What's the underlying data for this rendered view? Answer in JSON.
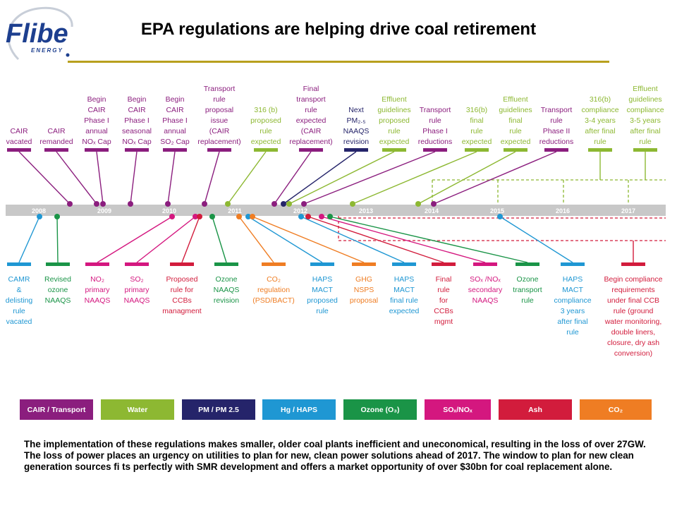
{
  "header": {
    "logo_text": "Flibe",
    "logo_subtext": "ENERGY",
    "title": "EPA regulations are helping drive coal retirement"
  },
  "colors": {
    "CAIR": "#8b1e7e",
    "Water": "#8db832",
    "PM": "#25246a",
    "HAPS": "#1f97d3",
    "Ozone": "#1a9447",
    "SOxNOx": "#d4177f",
    "Ash": "#d21c3c",
    "CO2": "#ef7d23"
  },
  "timeline": {
    "years": [
      "2008",
      "2009",
      "2010",
      "2011",
      "2012",
      "2013",
      "2014",
      "2015",
      "2016",
      "2017"
    ],
    "top_events": [
      {
        "id": "t1",
        "lines": [
          "CAIR",
          "vacated"
        ],
        "cat": "CAIR",
        "bx": 27,
        "dx": 99
      },
      {
        "id": "t2",
        "lines": [
          "CAIR",
          "remanded"
        ],
        "cat": "CAIR",
        "bx": 80,
        "dx": 137
      },
      {
        "id": "t3",
        "lines": [
          "Begin",
          "CAIR",
          "Phase I",
          "annual",
          "NOₓ Cap"
        ],
        "cat": "CAIR",
        "bx": 137,
        "dx": 146
      },
      {
        "id": "t4",
        "lines": [
          "Begin",
          "CAIR",
          "Phase I",
          "seasonal",
          "NOₓ Cap"
        ],
        "cat": "CAIR",
        "bx": 194,
        "dx": 185
      },
      {
        "id": "t5",
        "lines": [
          "Begin",
          "CAIR",
          "Phase I",
          "annual",
          "SO₂ Cap"
        ],
        "cat": "CAIR",
        "bx": 248,
        "dx": 238
      },
      {
        "id": "t6",
        "lines": [
          "Transport",
          "rule",
          "proposal",
          "issue",
          "(CAIR",
          "replacement)"
        ],
        "cat": "CAIR",
        "bx": 311,
        "dx": 290
      },
      {
        "id": "t7",
        "lines": [
          "316 (b)",
          "proposed",
          "rule",
          "expected"
        ],
        "cat": "Water",
        "bx": 377,
        "dx": 323
      },
      {
        "id": "t8",
        "lines": [
          "Final",
          "transport",
          "rule",
          "expected",
          "(CAIR",
          "replacement)"
        ],
        "cat": "CAIR",
        "bx": 441,
        "dx": 389
      },
      {
        "id": "t9",
        "lines": [
          "Next",
          "PM₂.₅",
          "NAAQS",
          "revision"
        ],
        "cat": "PM",
        "bx": 505,
        "dx": 402
      },
      {
        "id": "t10",
        "lines": [
          "Effluent",
          "guidelines",
          "proposed",
          "rule",
          "expected"
        ],
        "cat": "Water",
        "bx": 559,
        "dx": 410
      },
      {
        "id": "t11",
        "lines": [
          "Transport",
          "rule",
          "Phase I",
          "reductions"
        ],
        "cat": "CAIR",
        "bx": 617,
        "dx": 431
      },
      {
        "id": "t12",
        "lines": [
          "316(b)",
          "final",
          "rule",
          "expected"
        ],
        "cat": "Water",
        "bx": 676,
        "dx": 500
      },
      {
        "id": "t13",
        "lines": [
          "Effluent",
          "guidelines",
          "final",
          "rule",
          "expected"
        ],
        "cat": "Water",
        "bx": 731,
        "dx": 593
      },
      {
        "id": "t14",
        "lines": [
          "Transport",
          "rule",
          "Phase II",
          "reductions"
        ],
        "cat": "CAIR",
        "bx": 789,
        "dx": 615
      },
      {
        "id": "t15",
        "lines": [
          "316(b)",
          "compliance",
          "3-4 years",
          "after final",
          "rule"
        ],
        "cat": "Water",
        "bx": 851,
        "dx": null
      },
      {
        "id": "t16",
        "lines": [
          "Effluent",
          "guidelines",
          "compliance",
          "3-5 years",
          "after final",
          "rule"
        ],
        "cat": "Water",
        "bx": 915,
        "dx": null
      }
    ],
    "bottom_events": [
      {
        "id": "b1",
        "lines": [
          "CAMR",
          "&",
          "delisting",
          "rule",
          "vacated"
        ],
        "cat": "HAPS",
        "bx": 27,
        "dx": 56
      },
      {
        "id": "b2",
        "lines": [
          "Revised",
          "ozone",
          "NAAQS"
        ],
        "cat": "Ozone",
        "bx": 82,
        "dx": 81
      },
      {
        "id": "b3",
        "lines": [
          "NO₂",
          "primary",
          "NAAQS"
        ],
        "cat": "SOxNOx",
        "bx": 138,
        "dx": 244
      },
      {
        "id": "b4",
        "lines": [
          "SO₂",
          "primary",
          "NAAQS"
        ],
        "cat": "SOxNOx",
        "bx": 194,
        "dx": 277
      },
      {
        "id": "b5",
        "lines": [
          "Proposed",
          "rule for",
          "CCBs",
          "managment"
        ],
        "cat": "Ash",
        "bx": 258,
        "dx": 283
      },
      {
        "id": "b6",
        "lines": [
          "Ozone",
          "NAAQS",
          "revision"
        ],
        "cat": "Ozone",
        "bx": 321,
        "dx": 301
      },
      {
        "id": "b7",
        "lines": [
          "CO₂",
          "regulation",
          "(PSD/BACT)"
        ],
        "cat": "CO2",
        "bx": 388,
        "dx": 339
      },
      {
        "id": "b8",
        "lines": [
          "HAPS",
          "MACT",
          "proposed",
          "rule"
        ],
        "cat": "HAPS",
        "bx": 457,
        "dx": 352
      },
      {
        "id": "b9",
        "lines": [
          "GHG",
          "NSPS",
          "proposal"
        ],
        "cat": "CO2",
        "bx": 516,
        "dx": 358
      },
      {
        "id": "b10",
        "lines": [
          "HAPS",
          "MACT",
          "final rule",
          "expected"
        ],
        "cat": "HAPS",
        "bx": 573,
        "dx": 427
      },
      {
        "id": "b11",
        "lines": [
          "Final",
          "rule",
          "for",
          "CCBs",
          "mgmt"
        ],
        "cat": "Ash",
        "bx": 629,
        "dx": 437
      },
      {
        "id": "b12",
        "lines": [
          "SOₓ /NOₓ",
          "secondary",
          "NAAQS"
        ],
        "cat": "SOxNOx",
        "bx": 688,
        "dx": 456
      },
      {
        "id": "b13",
        "lines": [
          "Ozone",
          "transport",
          "rule"
        ],
        "cat": "Ozone",
        "bx": 748,
        "dx": 468
      },
      {
        "id": "b14",
        "lines": [
          "HAPS",
          "MACT",
          "compliance",
          "3 years",
          "after final",
          "rule"
        ],
        "cat": "HAPS",
        "bx": 812,
        "dx": 709
      },
      {
        "id": "b15",
        "lines": [
          "Begin compliance",
          "requirements",
          "under final CCB",
          "rule (ground",
          "water monitoring,",
          "double liners,",
          "closure, dry ash",
          "conversion)"
        ],
        "cat": "Ash",
        "bx": 898,
        "dx": null
      }
    ]
  },
  "legend": [
    {
      "label": "CAIR / Transport",
      "cat": "CAIR"
    },
    {
      "label": "Water",
      "cat": "Water"
    },
    {
      "label": "PM / PM 2.5",
      "cat": "PM"
    },
    {
      "label": "Hg / HAPS",
      "cat": "HAPS"
    },
    {
      "label": "Ozone (O₃)",
      "cat": "Ozone"
    },
    {
      "label": "SOₓ/NOₓ",
      "cat": "SOxNOx"
    },
    {
      "label": "Ash",
      "cat": "Ash"
    },
    {
      "label": "CO₂",
      "cat": "CO2"
    }
  ],
  "footer": {
    "text": "The implementation of these regulations makes smaller, older coal plants inefficient and uneconomical, resulting in the loss of over 27GW. The loss of power places an urgency on utilities to plan for new, clean power solutions ahead of 2017. The window to plan for new clean generation sources fi ts perfectly with SMR development and offers a market opportunity of over $30bn for coal replacement alone."
  }
}
